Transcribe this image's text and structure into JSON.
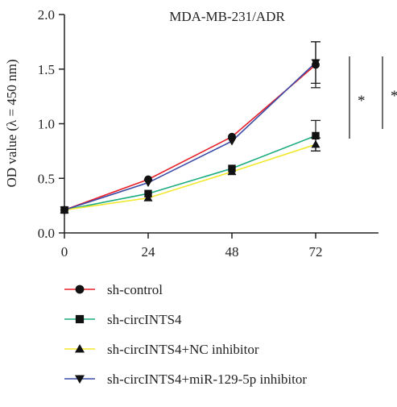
{
  "chart_data": {
    "type": "line",
    "title": "MDA-MB-231/ADR",
    "xlabel": "",
    "ylabel": "OD value (λ = 450 nm)",
    "x": [
      0,
      24,
      48,
      72
    ],
    "x_ticks": [
      "0",
      "24",
      "48",
      "72"
    ],
    "xlim": [
      0,
      90
    ],
    "ylim": [
      0,
      2.0
    ],
    "y_ticks": [
      "0.0",
      "0.5",
      "1.0",
      "1.5",
      "2.0"
    ],
    "grid": false,
    "legend_position": "bottom",
    "series": [
      {
        "name": "sh-control",
        "color": "#e8202a",
        "marker": "circle",
        "values": [
          0.21,
          0.49,
          0.88,
          1.54
        ],
        "errors": [
          0,
          0.02,
          0.02,
          0.21
        ]
      },
      {
        "name": "sh-circINTS4",
        "color": "#1aab7f",
        "marker": "square",
        "values": [
          0.21,
          0.36,
          0.59,
          0.89
        ],
        "errors": [
          0,
          0.02,
          0.02,
          0.14
        ]
      },
      {
        "name": "sh-circINTS4+NC inhibitor",
        "color": "#f2e82c",
        "marker": "triangle-up",
        "values": [
          0.21,
          0.32,
          0.56,
          0.81
        ],
        "errors": [
          0,
          0.02,
          0.02,
          0.06
        ]
      },
      {
        "name": "sh-circINTS4+miR-129-5p inhibitor",
        "color": "#3b4ba6",
        "marker": "triangle-down",
        "values": [
          0.21,
          0.46,
          0.84,
          1.56
        ],
        "errors": [
          0,
          0.02,
          0.02,
          0.19
        ]
      }
    ],
    "annotations": [
      "*",
      "*"
    ]
  }
}
